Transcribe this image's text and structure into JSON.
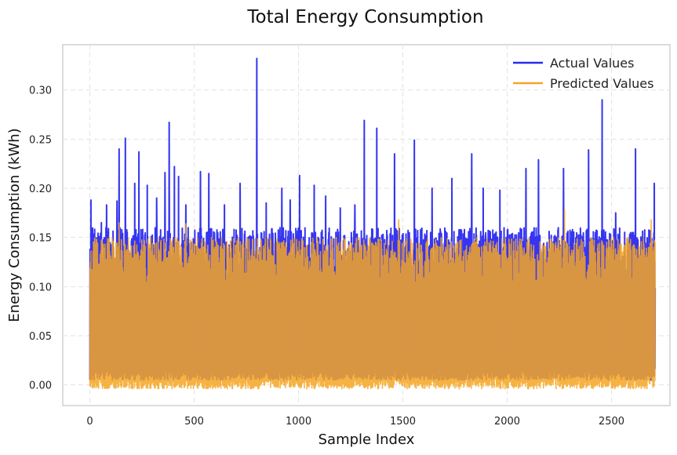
{
  "chart_data": {
    "type": "line",
    "title": "Total Energy Consumption",
    "xlabel": "Sample Index",
    "ylabel": "Energy Consumption (kWh)",
    "xlim": [
      -130,
      2780
    ],
    "ylim": [
      -0.021,
      0.346
    ],
    "xticks": [
      0,
      500,
      1000,
      1500,
      2000,
      2500
    ],
    "xtick_labels": [
      "0",
      "500",
      "1000",
      "1500",
      "2000",
      "2500"
    ],
    "yticks": [
      0.0,
      0.05,
      0.1,
      0.15,
      0.2,
      0.25,
      0.3
    ],
    "ytick_labels": [
      "0.00",
      "0.05",
      "0.10",
      "0.15",
      "0.20",
      "0.25",
      "0.30"
    ],
    "grid": true,
    "grid_style": "dashed",
    "legend_position": "top-right",
    "n_points": 2710,
    "series": [
      {
        "name": "Actual Values",
        "color": "#2a2af0",
        "band": {
          "low": 0.005,
          "typical_high": 0.16,
          "peak_cap": 0.15
        },
        "spikes": [
          {
            "x": 5,
            "y": 0.188
          },
          {
            "x": 55,
            "y": 0.165
          },
          {
            "x": 80,
            "y": 0.183
          },
          {
            "x": 130,
            "y": 0.187
          },
          {
            "x": 140,
            "y": 0.24
          },
          {
            "x": 170,
            "y": 0.251
          },
          {
            "x": 215,
            "y": 0.205
          },
          {
            "x": 235,
            "y": 0.237
          },
          {
            "x": 275,
            "y": 0.203
          },
          {
            "x": 320,
            "y": 0.19
          },
          {
            "x": 360,
            "y": 0.216
          },
          {
            "x": 380,
            "y": 0.267
          },
          {
            "x": 405,
            "y": 0.222
          },
          {
            "x": 425,
            "y": 0.212
          },
          {
            "x": 460,
            "y": 0.183
          },
          {
            "x": 530,
            "y": 0.217
          },
          {
            "x": 570,
            "y": 0.215
          },
          {
            "x": 645,
            "y": 0.183
          },
          {
            "x": 720,
            "y": 0.205
          },
          {
            "x": 800,
            "y": 0.332
          },
          {
            "x": 845,
            "y": 0.185
          },
          {
            "x": 920,
            "y": 0.2
          },
          {
            "x": 960,
            "y": 0.188
          },
          {
            "x": 1005,
            "y": 0.213
          },
          {
            "x": 1075,
            "y": 0.203
          },
          {
            "x": 1130,
            "y": 0.192
          },
          {
            "x": 1200,
            "y": 0.18
          },
          {
            "x": 1270,
            "y": 0.183
          },
          {
            "x": 1315,
            "y": 0.269
          },
          {
            "x": 1375,
            "y": 0.261
          },
          {
            "x": 1460,
            "y": 0.235
          },
          {
            "x": 1555,
            "y": 0.249
          },
          {
            "x": 1640,
            "y": 0.2
          },
          {
            "x": 1735,
            "y": 0.21
          },
          {
            "x": 1830,
            "y": 0.235
          },
          {
            "x": 1885,
            "y": 0.2
          },
          {
            "x": 1965,
            "y": 0.198
          },
          {
            "x": 2090,
            "y": 0.22
          },
          {
            "x": 2150,
            "y": 0.229
          },
          {
            "x": 2270,
            "y": 0.22
          },
          {
            "x": 2390,
            "y": 0.239
          },
          {
            "x": 2455,
            "y": 0.29
          },
          {
            "x": 2520,
            "y": 0.175
          },
          {
            "x": 2615,
            "y": 0.24
          },
          {
            "x": 2705,
            "y": 0.205
          }
        ]
      },
      {
        "name": "Predicted Values",
        "color": "#f5a623",
        "band": {
          "low": -0.004,
          "typical_high": 0.15,
          "peak_cap": 0.145
        },
        "spikes": [
          {
            "x": 140,
            "y": 0.165
          },
          {
            "x": 460,
            "y": 0.164
          },
          {
            "x": 1480,
            "y": 0.168
          },
          {
            "x": 2275,
            "y": 0.178
          },
          {
            "x": 2690,
            "y": 0.168
          }
        ]
      }
    ],
    "overlap_color": "#d4892f"
  }
}
